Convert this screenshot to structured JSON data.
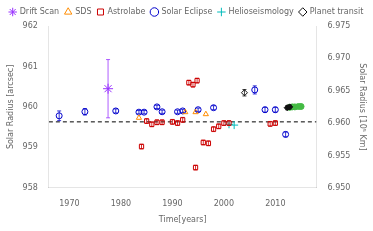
{
  "chart_data": {
    "type": "scatter",
    "xlabel": "Time[years]",
    "ylabel": "Solar Radius [arcsec]",
    "y2label": "Solar Radius [10⁵ Km]",
    "xlim": [
      1966,
      2018
    ],
    "xticks": [
      1970,
      1980,
      1990,
      2000,
      2010
    ],
    "ylim": [
      958.0,
      962.0
    ],
    "yticks": [
      958,
      959,
      960,
      961,
      962
    ],
    "y2lim": [
      6.95,
      6.975
    ],
    "y2ticks": [
      {
        "value": 6.95,
        "label": "6.950"
      },
      {
        "value": 6.955,
        "label": "6.955"
      },
      {
        "value": 6.96,
        "label": "6.960"
      },
      {
        "value": 6.965,
        "label": "6.965"
      },
      {
        "value": 6.97,
        "label": "6.970"
      },
      {
        "value": 6.975,
        "label": "6.975"
      }
    ],
    "grid": false,
    "legend": "top",
    "hlines": [
      {
        "y": 959.63,
        "line_style": "dashed",
        "color": "#000000"
      }
    ],
    "series": [
      {
        "name": "Drift Scan",
        "color": "#9933FF",
        "marker": "star",
        "x": [
          1977.5
        ],
        "values": [
          960.45
        ],
        "yerr": [
          0.72
        ]
      },
      {
        "name": "SDS",
        "color": "#FF8C00",
        "marker": "triangle-open",
        "x": [
          1983.5,
          1992.5,
          1994.5,
          1996.5
        ],
        "values": [
          959.73,
          959.87,
          959.87,
          959.82
        ]
      },
      {
        "name": "Astrolabe",
        "color": "#CC0000",
        "marker": "square-open",
        "x": [
          1985.0,
          1986.0,
          1987.0,
          1988.0,
          1984.0,
          1990.0,
          1991.0,
          1992.0,
          1993.2,
          1994.0,
          1994.8,
          1996.0,
          1997.0,
          1998.0,
          1999.0,
          2000.0,
          2001.0,
          2009.0,
          2010.0,
          1994.5
        ],
        "values": [
          959.65,
          959.57,
          959.62,
          959.62,
          959.02,
          959.63,
          959.6,
          959.68,
          960.6,
          960.55,
          960.65,
          959.12,
          959.1,
          959.45,
          959.52,
          959.6,
          959.6,
          959.58,
          959.6,
          958.5
        ],
        "yerr": [
          0.06,
          0.06,
          0.06,
          0.06,
          0.06,
          0.06,
          0.06,
          0.06,
          0.06,
          0.06,
          0.06,
          0.06,
          0.06,
          0.06,
          0.06,
          0.06,
          0.06,
          0.06,
          0.06,
          0.06
        ]
      },
      {
        "name": "Solar Eclipse",
        "color": "#0000CC",
        "marker": "circle-open",
        "x": [
          1968.0,
          1973.0,
          1979.0,
          1983.5,
          1984.5,
          1987.0,
          1988.0,
          1991.0,
          1992.0,
          1995.0,
          1998.0,
          2006.0,
          2008.0,
          2010.0,
          2012.0
        ],
        "values": [
          959.78,
          959.88,
          959.9,
          959.87,
          959.87,
          960.0,
          959.88,
          959.88,
          959.9,
          959.93,
          959.98,
          960.42,
          959.93,
          959.93,
          959.32
        ],
        "yerr": [
          0.12,
          0.08,
          0.05,
          0.04,
          0.04,
          0.04,
          0.04,
          0.04,
          0.04,
          0.04,
          0.05,
          0.1,
          0.06,
          0.06,
          0.06
        ]
      },
      {
        "name": "Helioseismology",
        "color": "#00BBBB",
        "marker": "plus",
        "x": [
          2001.0,
          2002.0
        ],
        "values": [
          959.57,
          959.55
        ]
      },
      {
        "name": "Planet transit",
        "color": "#111111",
        "marker": "diamond-open",
        "x": [
          2004.0
        ],
        "values": [
          960.35
        ],
        "yerr": [
          0.08
        ]
      },
      {
        "color": "#111111",
        "marker": "diamond",
        "x": [
          2012.3,
          2012.8
        ],
        "values": [
          959.98,
          960.0
        ],
        "yerr": [
          0.05,
          0.05
        ]
      },
      {
        "color": "#44BB44",
        "marker": "circle",
        "x": [
          2012.8,
          2013.3,
          2013.8,
          2014.5,
          2015.0
        ],
        "values": [
          959.99,
          960.0,
          960.0,
          960.01,
          960.01
        ]
      }
    ]
  }
}
